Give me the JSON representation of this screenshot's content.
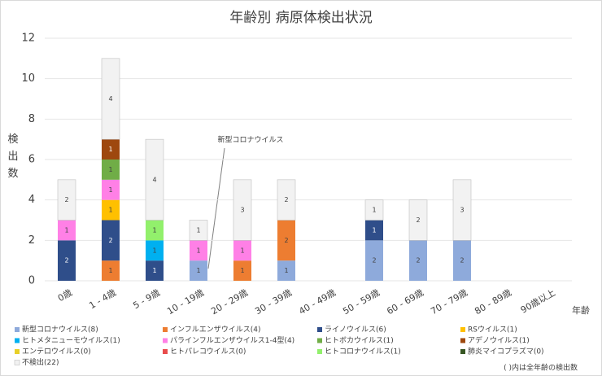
{
  "chart_data": {
    "type": "bar",
    "stacked": true,
    "title": "年齢別 病原体検出状況",
    "y_label": "検出数",
    "x_label": "年齢",
    "note": "( )内は全年齢の検出数",
    "annotation": "新型コロナウイルス",
    "categories": [
      "0歳",
      "1 - 4歳",
      "5 - 9歳",
      "10 - 19歳",
      "20 - 29歳",
      "30 - 39歳",
      "40 - 49歳",
      "50 - 59歳",
      "60 - 69歳",
      "70 - 79歳",
      "80 - 89歳",
      "90歳以上"
    ],
    "ylim": [
      0,
      12
    ],
    "yticks": [
      0,
      2,
      4,
      6,
      8,
      10,
      12
    ],
    "grid": true,
    "series": [
      {
        "name": "新型コロナウイルス(8)",
        "color": "#8eaadb",
        "values": [
          0,
          0,
          0,
          1,
          0,
          1,
          0,
          2,
          2,
          2,
          0,
          0
        ]
      },
      {
        "name": "インフルエンザウイルス(4)",
        "color": "#ed7d31",
        "values": [
          0,
          1,
          0,
          0,
          1,
          2,
          0,
          0,
          0,
          0,
          0,
          0
        ]
      },
      {
        "name": "ライノウイルス(6)",
        "color": "#2f4e8a",
        "values": [
          2,
          2,
          1,
          0,
          0,
          0,
          0,
          1,
          0,
          0,
          0,
          0
        ]
      },
      {
        "name": "RSウイルス(1)",
        "color": "#ffc000",
        "values": [
          0,
          1,
          0,
          0,
          0,
          0,
          0,
          0,
          0,
          0,
          0,
          0
        ]
      },
      {
        "name": "ヒトメタニューモウイルス(1)",
        "color": "#00b0f0",
        "values": [
          0,
          0,
          1,
          0,
          0,
          0,
          0,
          0,
          0,
          0,
          0,
          0
        ]
      },
      {
        "name": "パラインフルエンザウイルス1-4型(4)",
        "color": "#ff80e6",
        "values": [
          1,
          1,
          0,
          1,
          1,
          0,
          0,
          0,
          0,
          0,
          0,
          0
        ]
      },
      {
        "name": "ヒトボカウイルス(1)",
        "color": "#70ad47",
        "values": [
          0,
          1,
          0,
          0,
          0,
          0,
          0,
          0,
          0,
          0,
          0,
          0
        ]
      },
      {
        "name": "アデノウイルス(1)",
        "color": "#9e480e",
        "values": [
          0,
          1,
          0,
          0,
          0,
          0,
          0,
          0,
          0,
          0,
          0,
          0
        ]
      },
      {
        "name": "エンテロウイルス(0)",
        "color": "#e8d028",
        "values": [
          0,
          0,
          0,
          0,
          0,
          0,
          0,
          0,
          0,
          0,
          0,
          0
        ]
      },
      {
        "name": "ヒトパレコウイルス(0)",
        "color": "#e84c4c",
        "values": [
          0,
          0,
          0,
          0,
          0,
          0,
          0,
          0,
          0,
          0,
          0,
          0
        ]
      },
      {
        "name": "ヒトコロナウイルス(1)",
        "color": "#92f06c",
        "values": [
          0,
          0,
          1,
          0,
          0,
          0,
          0,
          0,
          0,
          0,
          0,
          0
        ]
      },
      {
        "name": "肺炎マイコプラズマ(0)",
        "color": "#375623",
        "values": [
          0,
          0,
          0,
          0,
          0,
          0,
          0,
          0,
          0,
          0,
          0,
          0
        ]
      },
      {
        "name": "不検出(22)",
        "color": "#f2f2f2",
        "values": [
          2,
          4,
          4,
          1,
          3,
          2,
          0,
          1,
          2,
          3,
          0,
          0
        ]
      }
    ]
  }
}
